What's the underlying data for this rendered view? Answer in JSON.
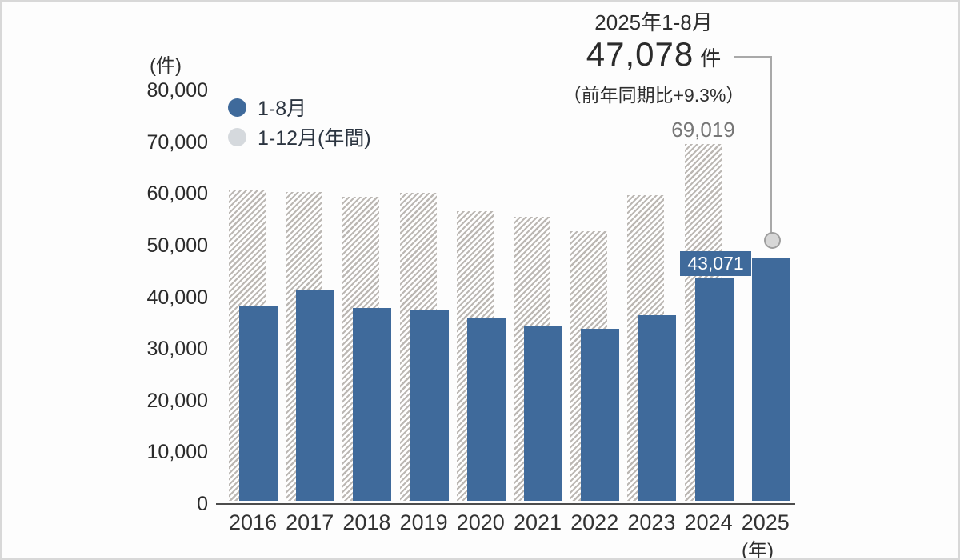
{
  "chart_data": {
    "type": "bar",
    "categories": [
      "2016",
      "2017",
      "2018",
      "2019",
      "2020",
      "2021",
      "2022",
      "2023",
      "2024",
      "2025"
    ],
    "series": [
      {
        "name": "1-8月",
        "style": "solid",
        "color": "#3F6A9B",
        "values": [
          37700,
          40700,
          37300,
          36900,
          35400,
          33700,
          33300,
          35900,
          43071,
          47078
        ]
      },
      {
        "name": "1-12月(年間)",
        "style": "hatched",
        "hatch_color": "#BCB8B4",
        "values": [
          60200,
          59700,
          58800,
          59600,
          56100,
          55000,
          52100,
          59100,
          69019,
          null
        ]
      }
    ],
    "ylabel": "(件)",
    "xlabel": "(年)",
    "ylim": [
      0,
      80000
    ],
    "ytick_labels": [
      "0",
      "10,000",
      "20,000",
      "30,000",
      "40,000",
      "50,000",
      "60,000",
      "70,000",
      "80,000"
    ],
    "grid": false,
    "legend_position": "upper-left",
    "legend": [
      {
        "label": "1-8月",
        "color": "#3F6A9B"
      },
      {
        "label": "1-12月(年間)",
        "color": "#D5D9DD"
      }
    ],
    "annotation_2025": {
      "title": "2025年1-8月",
      "value": "47,078",
      "unit": "件",
      "note": "（前年同期比+9.3%）"
    },
    "data_labels": {
      "annual_2024": "69,019",
      "aug_2024": "43,071"
    },
    "colors": {
      "bar_blue": "#3F6A9B",
      "hatch_gray": "#BCB8B4",
      "axis_line": "#4C4C4C",
      "callout_line": "#A9A9A9",
      "badge_text": "#FFFFFF"
    }
  }
}
